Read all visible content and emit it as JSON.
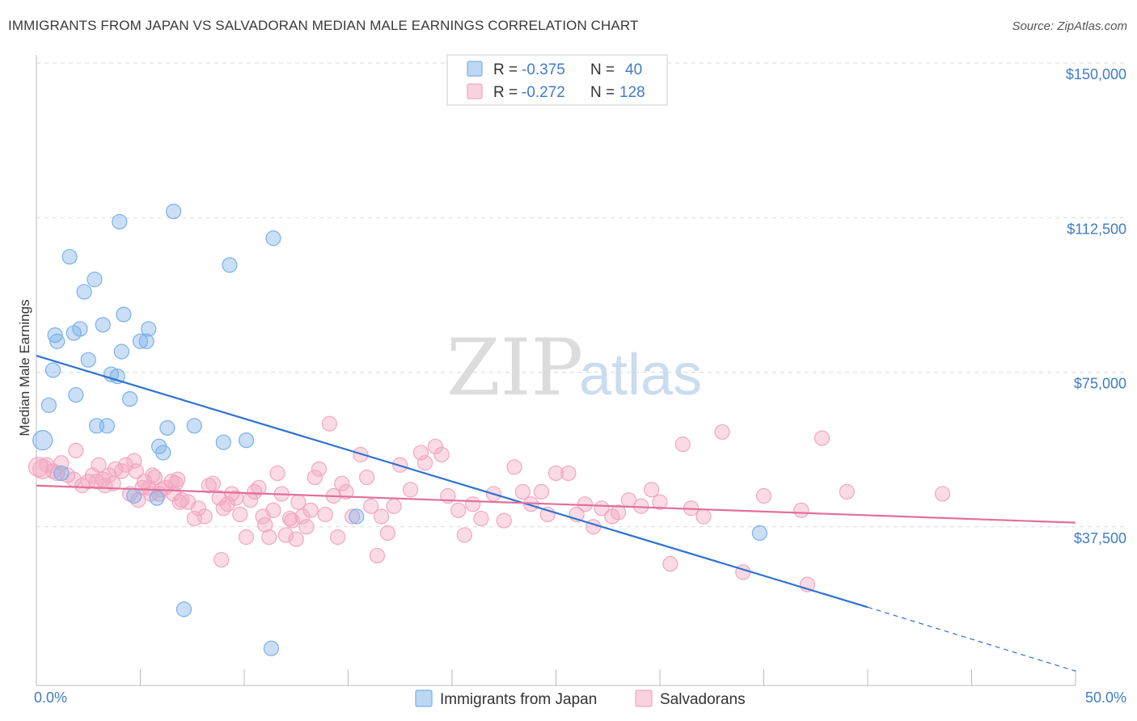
{
  "title": "IMMIGRANTS FROM JAPAN VS SALVADORAN MEDIAN MALE EARNINGS CORRELATION CHART",
  "source": "Source: ZipAtlas.com",
  "watermark": {
    "zip": "ZIP",
    "atlas": "atlas"
  },
  "legend_top": [
    {
      "r_label": "R = ",
      "r_value": "-0.375",
      "n_label": "N = ",
      "n_value": "40",
      "color": "#7ab0e8"
    },
    {
      "r_label": "R = ",
      "r_value": "-0.272",
      "n_label": "N = ",
      "n_value": "128",
      "color": "#f2a6bf"
    }
  ],
  "legend_bottom": [
    {
      "label": "Immigrants from Japan",
      "color": "#7ab0e8"
    },
    {
      "label": "Salvadorans",
      "color": "#f2a6bf"
    }
  ],
  "chart_data": {
    "type": "scatter",
    "ylabel": "Median Male Earnings",
    "xlim": [
      0,
      50
    ],
    "ylim": [
      0,
      150000
    ],
    "x_tick_labels": [
      "0.0%",
      "50.0%"
    ],
    "y_ticks": [
      {
        "value": 37500,
        "label": "$37,500"
      },
      {
        "value": 75000,
        "label": "$75,000"
      },
      {
        "value": 112500,
        "label": "$112,500"
      },
      {
        "value": 150000,
        "label": "$150,000"
      }
    ],
    "grid": true,
    "series": [
      {
        "name": "Immigrants from Japan",
        "color": "#7ab0e8",
        "line_color": "#2f72cf",
        "trend": {
          "x0": 0,
          "y0": 79000,
          "x1": 40,
          "y1": 18000,
          "dash_to_x": 50,
          "dash_to_y": 2500
        },
        "points": [
          [
            0.3,
            58500
          ],
          [
            0.6,
            67000
          ],
          [
            0.8,
            75500
          ],
          [
            0.9,
            84000
          ],
          [
            1.0,
            82500
          ],
          [
            1.2,
            50500
          ],
          [
            1.6,
            103000
          ],
          [
            1.8,
            84500
          ],
          [
            1.9,
            69500
          ],
          [
            2.1,
            85500
          ],
          [
            2.3,
            94500
          ],
          [
            2.5,
            78000
          ],
          [
            2.8,
            97500
          ],
          [
            2.9,
            62000
          ],
          [
            3.2,
            86500
          ],
          [
            3.4,
            62000
          ],
          [
            3.6,
            74500
          ],
          [
            3.9,
            74000
          ],
          [
            4.0,
            111500
          ],
          [
            4.1,
            80000
          ],
          [
            4.2,
            89000
          ],
          [
            4.5,
            68500
          ],
          [
            4.7,
            45000
          ],
          [
            5.0,
            82500
          ],
          [
            5.3,
            82500
          ],
          [
            5.4,
            85500
          ],
          [
            5.8,
            44500
          ],
          [
            5.9,
            57000
          ],
          [
            6.1,
            55500
          ],
          [
            6.3,
            61500
          ],
          [
            6.6,
            114000
          ],
          [
            7.1,
            17500
          ],
          [
            7.6,
            62000
          ],
          [
            9.3,
            101000
          ],
          [
            9.0,
            58000
          ],
          [
            10.1,
            58500
          ],
          [
            11.4,
            107500
          ],
          [
            11.3,
            8000
          ],
          [
            15.4,
            40000
          ],
          [
            34.8,
            36000
          ]
        ]
      },
      {
        "name": "Salvadorans",
        "color": "#f2a6bf",
        "line_color": "#e0709b",
        "trend": {
          "x0": 0,
          "y0": 47500,
          "x1": 50,
          "y1": 38500
        },
        "points": [
          [
            0.1,
            52000
          ],
          [
            0.3,
            51500
          ],
          [
            0.5,
            52500
          ],
          [
            0.8,
            51000
          ],
          [
            1.0,
            50500
          ],
          [
            1.2,
            53000
          ],
          [
            1.5,
            50000
          ],
          [
            1.8,
            49000
          ],
          [
            1.9,
            56000
          ],
          [
            2.2,
            47500
          ],
          [
            2.5,
            48500
          ],
          [
            2.7,
            50000
          ],
          [
            2.9,
            48500
          ],
          [
            3.0,
            52500
          ],
          [
            3.2,
            49000
          ],
          [
            3.3,
            47500
          ],
          [
            3.5,
            50000
          ],
          [
            3.7,
            48000
          ],
          [
            3.8,
            51500
          ],
          [
            4.1,
            51000
          ],
          [
            4.3,
            52500
          ],
          [
            4.5,
            45500
          ],
          [
            4.7,
            53500
          ],
          [
            4.8,
            51000
          ],
          [
            4.9,
            44000
          ],
          [
            5.1,
            47000
          ],
          [
            5.2,
            48500
          ],
          [
            5.4,
            47000
          ],
          [
            5.5,
            45500
          ],
          [
            5.6,
            50000
          ],
          [
            5.7,
            49500
          ],
          [
            5.9,
            45500
          ],
          [
            6.0,
            46500
          ],
          [
            6.2,
            47000
          ],
          [
            6.5,
            48500
          ],
          [
            6.6,
            45500
          ],
          [
            6.7,
            48000
          ],
          [
            6.8,
            49000
          ],
          [
            6.9,
            43500
          ],
          [
            7.0,
            44000
          ],
          [
            7.3,
            43500
          ],
          [
            7.6,
            39500
          ],
          [
            7.8,
            42000
          ],
          [
            8.1,
            40000
          ],
          [
            8.3,
            47500
          ],
          [
            8.5,
            48000
          ],
          [
            8.8,
            44500
          ],
          [
            8.9,
            29500
          ],
          [
            9.0,
            42000
          ],
          [
            9.2,
            43000
          ],
          [
            9.4,
            45500
          ],
          [
            9.6,
            44500
          ],
          [
            9.8,
            40500
          ],
          [
            10.1,
            35000
          ],
          [
            10.3,
            44000
          ],
          [
            10.5,
            46000
          ],
          [
            10.7,
            47000
          ],
          [
            10.9,
            40000
          ],
          [
            11.0,
            38000
          ],
          [
            11.2,
            35000
          ],
          [
            11.4,
            41500
          ],
          [
            11.6,
            50500
          ],
          [
            11.8,
            45500
          ],
          [
            12.0,
            35500
          ],
          [
            12.2,
            39500
          ],
          [
            12.3,
            39000
          ],
          [
            12.5,
            34500
          ],
          [
            12.6,
            43500
          ],
          [
            12.8,
            40000
          ],
          [
            13.0,
            37500
          ],
          [
            13.2,
            41500
          ],
          [
            13.4,
            49500
          ],
          [
            13.6,
            51500
          ],
          [
            13.9,
            40500
          ],
          [
            14.1,
            62500
          ],
          [
            14.3,
            45000
          ],
          [
            14.5,
            35000
          ],
          [
            14.7,
            48000
          ],
          [
            14.9,
            46000
          ],
          [
            15.2,
            40000
          ],
          [
            15.6,
            55000
          ],
          [
            15.9,
            49500
          ],
          [
            16.1,
            42500
          ],
          [
            16.4,
            30500
          ],
          [
            16.6,
            40000
          ],
          [
            16.9,
            36000
          ],
          [
            17.2,
            42500
          ],
          [
            17.5,
            52500
          ],
          [
            18.0,
            46500
          ],
          [
            18.5,
            55500
          ],
          [
            18.7,
            53000
          ],
          [
            19.2,
            57000
          ],
          [
            19.5,
            55000
          ],
          [
            19.8,
            45000
          ],
          [
            20.3,
            41500
          ],
          [
            20.6,
            35500
          ],
          [
            21.0,
            43000
          ],
          [
            21.4,
            39500
          ],
          [
            22.0,
            45500
          ],
          [
            22.5,
            39000
          ],
          [
            23.0,
            52000
          ],
          [
            23.4,
            46000
          ],
          [
            23.8,
            43000
          ],
          [
            24.3,
            46000
          ],
          [
            24.6,
            40500
          ],
          [
            25.0,
            50500
          ],
          [
            25.6,
            50500
          ],
          [
            26.0,
            40500
          ],
          [
            26.4,
            43000
          ],
          [
            26.8,
            37500
          ],
          [
            27.2,
            42000
          ],
          [
            27.7,
            40000
          ],
          [
            28.0,
            41000
          ],
          [
            28.5,
            44000
          ],
          [
            29.1,
            42500
          ],
          [
            29.6,
            46500
          ],
          [
            30.0,
            43500
          ],
          [
            30.5,
            28500
          ],
          [
            31.1,
            57500
          ],
          [
            31.5,
            42000
          ],
          [
            32.1,
            40000
          ],
          [
            33.0,
            60500
          ],
          [
            34.0,
            26500
          ],
          [
            35.0,
            45000
          ],
          [
            36.8,
            41500
          ],
          [
            37.1,
            23500
          ],
          [
            37.8,
            59000
          ],
          [
            39.0,
            46000
          ],
          [
            43.6,
            45500
          ]
        ]
      }
    ]
  }
}
